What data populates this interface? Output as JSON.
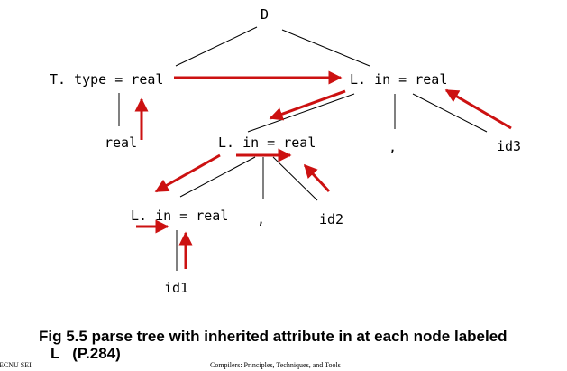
{
  "tree": {
    "root": "D",
    "t_type": "T. type = real",
    "real_leaf": "real",
    "l_in_top": "L. in = real",
    "l_in_mid": "L. in = real",
    "comma_top": ",",
    "id3": "id3",
    "l_in_bottom": "L. in = real",
    "comma_mid": ",",
    "id2": "id2",
    "id1": "id1"
  },
  "caption": {
    "line1": "Fig 5.5 parse tree with inherited attribute in at each node labeled",
    "line2": "L   (P.284)"
  },
  "footer": {
    "left": "ECNU SEI",
    "center": "Compilers: Principles, Techniques, and Tools"
  },
  "colors": {
    "edge": "#000000",
    "attribute_arrow": "#cc1111"
  }
}
